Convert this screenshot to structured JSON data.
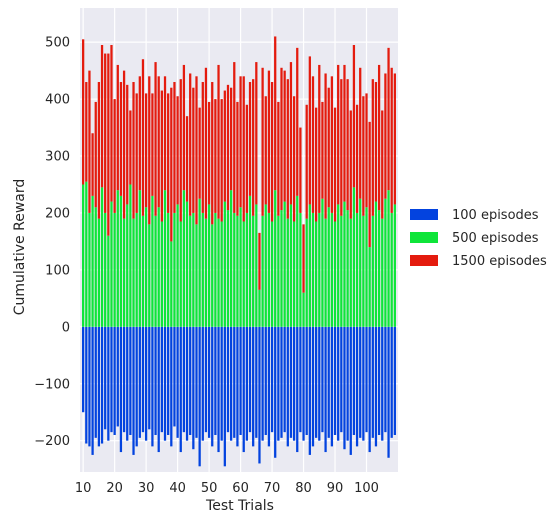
{
  "chart_data": {
    "type": "bar",
    "stacked": true,
    "xlabel": "Test Trials",
    "ylabel": "Cumulative Reward",
    "ylim": [
      -255,
      560
    ],
    "xlim": [
      9,
      110
    ],
    "grid": true,
    "legend_placement": "right",
    "x_ticks": [
      10,
      20,
      30,
      40,
      50,
      60,
      70,
      80,
      90,
      100
    ],
    "y_ticks": [
      -200,
      -100,
      0,
      100,
      200,
      300,
      400,
      500
    ],
    "colors": {
      "plot_bg": "#eaeaf2",
      "grid": "#ffffff",
      "100 episodes": "#0343df",
      "500 episodes": "#0ee539",
      "1500 episodes": "#e41b0e"
    },
    "x_start": 10,
    "series": [
      {
        "name": "100 episodes",
        "values": [
          -150,
          -205,
          -210,
          -225,
          -195,
          -210,
          -205,
          -180,
          -200,
          -185,
          -190,
          -175,
          -220,
          -185,
          -200,
          -190,
          -225,
          -210,
          -195,
          -185,
          -200,
          -180,
          -210,
          -190,
          -220,
          -185,
          -200,
          -190,
          -210,
          -175,
          -195,
          -220,
          -185,
          -200,
          -190,
          -215,
          -195,
          -245,
          -200,
          -185,
          -195,
          -210,
          -190,
          -220,
          -200,
          -245,
          -185,
          -200,
          -195,
          -210,
          -190,
          -220,
          -200,
          -185,
          -210,
          -195,
          -240,
          -200,
          -190,
          -210,
          -185,
          -230,
          -200,
          -195,
          -185,
          -210,
          -195,
          -200,
          -220,
          -185,
          -200,
          -190,
          -225,
          -210,
          -195,
          -200,
          -185,
          -220,
          -195,
          -210,
          -190,
          -200,
          -185,
          -215,
          -200,
          -225,
          -190,
          -210,
          -195,
          -200,
          -185,
          -220,
          -195,
          -210,
          -190,
          -200,
          -185,
          -230,
          -195,
          -190
        ]
      },
      {
        "name": "500 episodes",
        "values": [
          250,
          255,
          200,
          230,
          210,
          190,
          245,
          200,
          160,
          220,
          200,
          240,
          230,
          190,
          215,
          250,
          190,
          200,
          240,
          195,
          210,
          180,
          230,
          195,
          210,
          185,
          240,
          200,
          150,
          200,
          215,
          185,
          240,
          220,
          195,
          200,
          180,
          225,
          200,
          190,
          215,
          180,
          200,
          190,
          185,
          220,
          205,
          240,
          200,
          195,
          210,
          185,
          200,
          230,
          195,
          215,
          65,
          195,
          215,
          200,
          185,
          240,
          195,
          205,
          220,
          190,
          215,
          185,
          230,
          200,
          60,
          190,
          215,
          200,
          185,
          200,
          225,
          190,
          210,
          200,
          185,
          215,
          195,
          220,
          205,
          190,
          245,
          200,
          225,
          195,
          210,
          140,
          195,
          220,
          205,
          190,
          225,
          240,
          200,
          215
        ]
      },
      {
        "name": "1500 episodes",
        "values": [
          255,
          175,
          250,
          110,
          185,
          240,
          250,
          280,
          320,
          275,
          200,
          220,
          200,
          260,
          210,
          130,
          240,
          210,
          200,
          275,
          200,
          260,
          180,
          270,
          230,
          230,
          200,
          210,
          270,
          230,
          190,
          250,
          220,
          150,
          250,
          220,
          260,
          160,
          230,
          265,
          180,
          250,
          200,
          270,
          215,
          195,
          220,
          180,
          265,
          200,
          230,
          255,
          190,
          200,
          240,
          250,
          100,
          260,
          190,
          250,
          245,
          270,
          200,
          250,
          230,
          245,
          250,
          220,
          260,
          150,
          120,
          200,
          260,
          240,
          200,
          260,
          170,
          255,
          210,
          240,
          200,
          245,
          240,
          240,
          230,
          190,
          250,
          190,
          230,
          210,
          200,
          220,
          240,
          210,
          255,
          190,
          220,
          250,
          255,
          230
        ]
      }
    ]
  }
}
